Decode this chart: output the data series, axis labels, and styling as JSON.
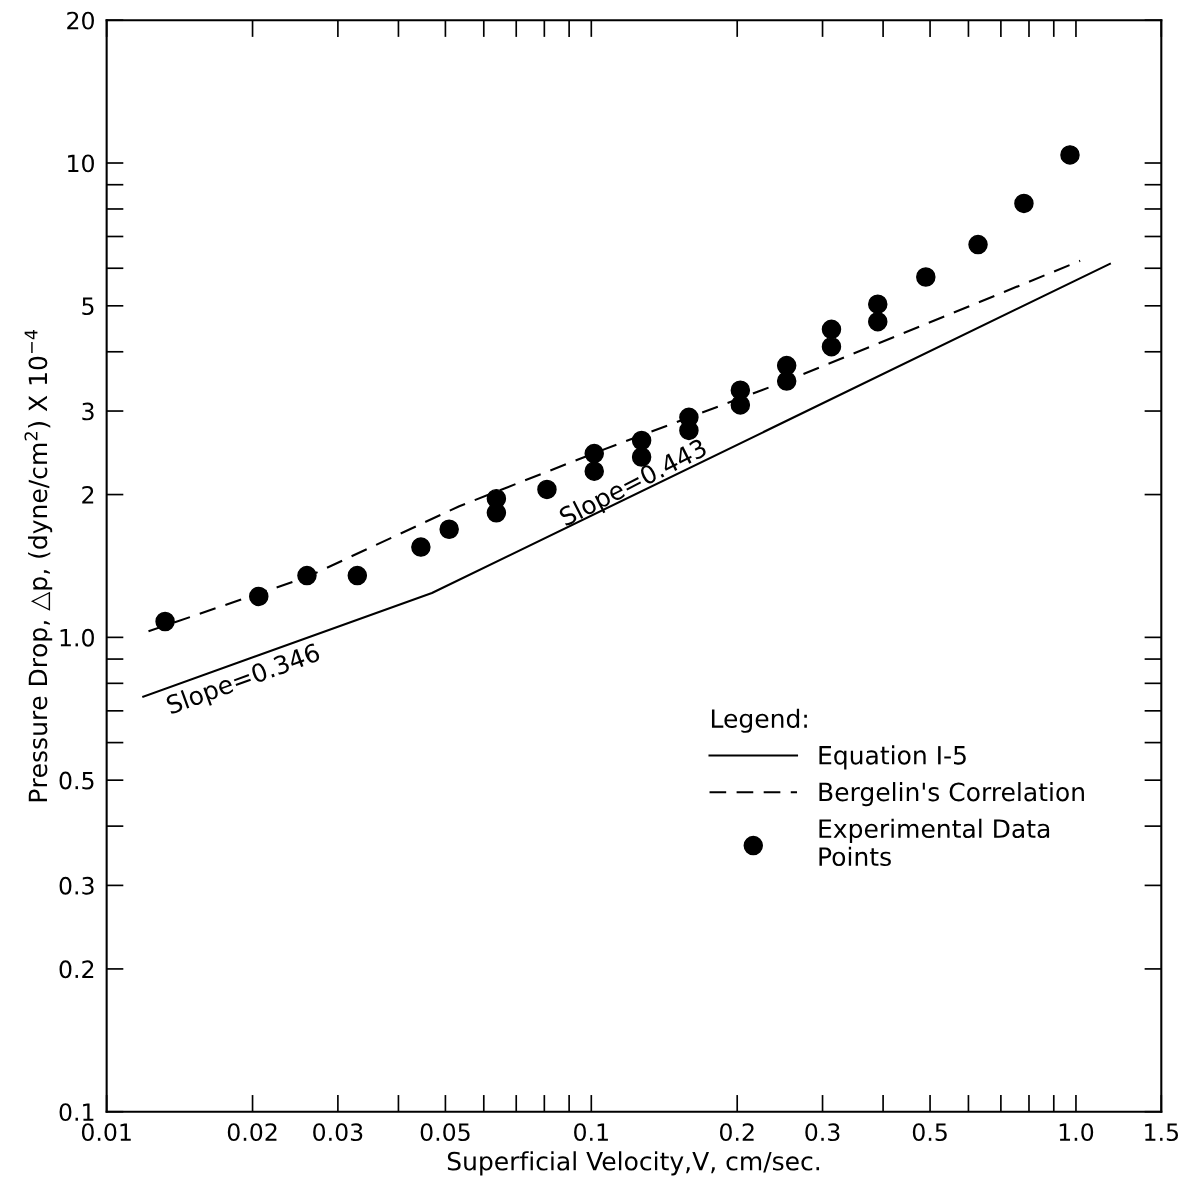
{
  "chart_data": {
    "type": "scatter",
    "xlabel": "Superficial Velocity,V, cm/sec.",
    "ylabel": "Pressure Drop, △p, (dyne/cm$^{2}$) X 10$^{−4}$",
    "log": "xy",
    "xlim": [
      0.01,
      1.5
    ],
    "ylim": [
      0.1,
      20
    ],
    "xticks": [
      {
        "value": 0.01,
        "label": "0.01"
      },
      0.02,
      0.03,
      0.05,
      0.1,
      0.2,
      0.3,
      0.5,
      {
        "value": 1.0,
        "label": "1.0"
      },
      1.5
    ],
    "yticks": [
      0.1,
      0.2,
      0.3,
      0.5,
      {
        "value": 1.0,
        "label": "1.0"
      },
      2,
      3,
      5,
      10,
      20
    ],
    "grid": false,
    "legend": "lower right",
    "legend_title": "Legend:",
    "series": [
      {
        "name": "Equation I-5",
        "type": "line",
        "line_style": "solid",
        "marker": "none",
        "color": "#000000",
        "x": [
          0.0119,
          0.0469,
          1.175
        ],
        "values": [
          0.75,
          1.24,
          6.13
        ]
      },
      {
        "name": "Bergelin's Correlation",
        "type": "line",
        "line_style": "dashed",
        "marker": "none",
        "color": "#000000",
        "x": [
          0.0122,
          0.0259,
          0.0534,
          0.104,
          0.256,
          1.02
        ],
        "values": [
          1.03,
          1.34,
          1.89,
          2.47,
          3.49,
          6.22
        ]
      },
      {
        "name": "Experimental Data\nPoints",
        "marker": "circle",
        "color": "#000000",
        "x": [
          0.0132,
          0.0206,
          0.0259,
          0.0329,
          0.0445,
          0.0509,
          0.0637,
          0.0637,
          0.081,
          0.1014,
          0.1014,
          0.127,
          0.127,
          0.159,
          0.159,
          0.203,
          0.203,
          0.253,
          0.253,
          0.313,
          0.313,
          0.39,
          0.39,
          0.49,
          0.628,
          0.781,
          0.972
        ],
        "values": [
          1.08,
          1.22,
          1.35,
          1.35,
          1.55,
          1.69,
          1.96,
          1.83,
          2.05,
          2.44,
          2.24,
          2.6,
          2.4,
          2.91,
          2.73,
          3.32,
          3.09,
          3.74,
          3.47,
          4.46,
          4.1,
          5.04,
          4.63,
          5.75,
          6.73,
          8.22,
          10.4
        ]
      }
    ],
    "annotations": [
      "Slope=0.346",
      "Slope=0.443"
    ]
  }
}
